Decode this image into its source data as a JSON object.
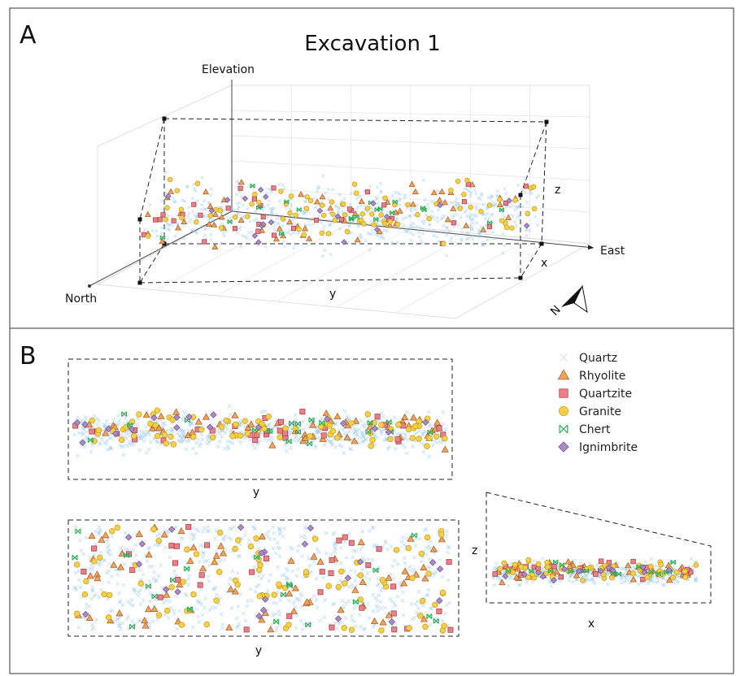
{
  "figure": {
    "panel_a_label": "A",
    "panel_b_label": "B"
  },
  "colors": {
    "Quartz": "#8ec3ea",
    "Rhyolite": "#f0a45a",
    "Quartzite": "#ea7f86",
    "Granite": "#f7d04a",
    "Chert": "#2fae5a",
    "Ignimbrite": "#a98bc8"
  },
  "chart_data": [
    {
      "type": "scatter",
      "panel": "A",
      "projection": "3d-perspective",
      "title": "Excavation 1",
      "axes": {
        "elevation": "Elevation",
        "east": "East",
        "north": "North",
        "x": "x",
        "y": "y",
        "z": "z"
      },
      "north_arrow": "N",
      "legend": [],
      "series_shapes": {
        "Quartz": "cross",
        "Rhyolite": "triangle",
        "Quartzite": "square",
        "Granite": "circle",
        "Chert": "boxcross",
        "Ignimbrite": "diamond"
      },
      "approx_point_counts": {
        "Quartz": 600,
        "Rhyolite": 60,
        "Quartzite": 35,
        "Granite": 80,
        "Chert": 20,
        "Ignimbrite": 20
      },
      "ylim": [
        0,
        1
      ],
      "xlim": [
        0,
        1
      ],
      "zlim": [
        0,
        1
      ],
      "grid": true
    },
    {
      "type": "scatter",
      "panel": "B-top",
      "view": "side elevation (y vs z)",
      "xlabel": "y",
      "legend_position": "top-right",
      "legend": [
        "Quartz",
        "Rhyolite",
        "Quartzite",
        "Granite",
        "Chert",
        "Ignimbrite"
      ],
      "approx_point_counts": {
        "Quartz": 600,
        "Rhyolite": 55,
        "Quartzite": 30,
        "Granite": 75,
        "Chert": 18,
        "Ignimbrite": 18
      },
      "xlim": [
        0,
        1
      ],
      "ylim": [
        0,
        1
      ],
      "grid": false
    },
    {
      "type": "scatter",
      "panel": "B-bottom-left",
      "view": "plan (y vs x)",
      "xlabel": "y",
      "approx_point_counts": {
        "Quartz": 650,
        "Rhyolite": 70,
        "Quartzite": 35,
        "Granite": 80,
        "Chert": 20,
        "Ignimbrite": 22
      },
      "xlim": [
        0,
        1
      ],
      "ylim": [
        0,
        1
      ],
      "grid": false
    },
    {
      "type": "scatter",
      "panel": "B-bottom-right",
      "view": "section (x vs z)",
      "xlabel": "x",
      "ylabel": "z",
      "approx_point_counts": {
        "Quartz": 450,
        "Rhyolite": 45,
        "Quartzite": 25,
        "Granite": 60,
        "Chert": 15,
        "Ignimbrite": 15
      },
      "xlim": [
        0,
        1
      ],
      "ylim": [
        0,
        1
      ],
      "grid": false
    }
  ]
}
